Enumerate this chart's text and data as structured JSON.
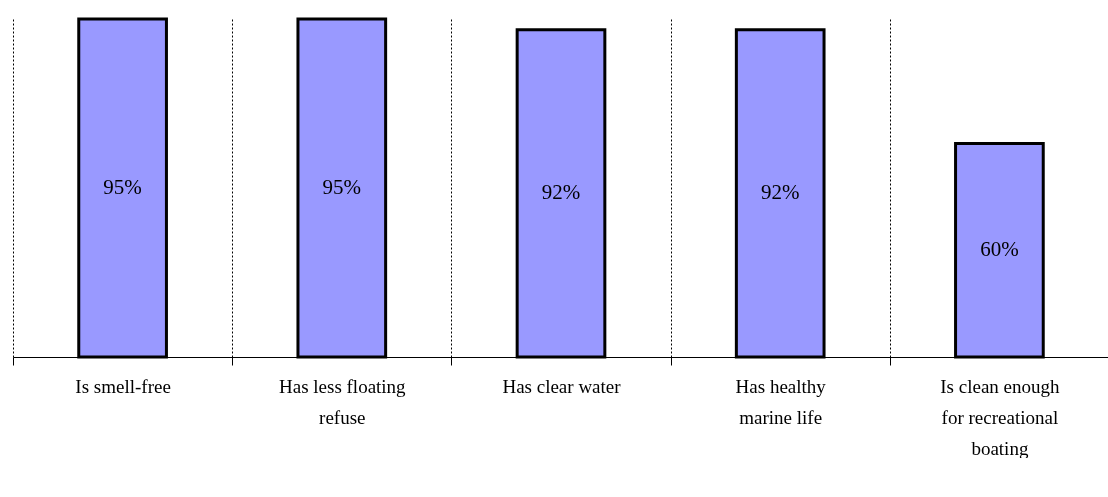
{
  "chart_data": {
    "type": "bar",
    "categories": [
      "Is smell-free",
      "Has less floating refuse",
      "Has clear water",
      "Has healthy marine life",
      "Is clean enough for recreational boating"
    ],
    "values": [
      95,
      95,
      92,
      92,
      60
    ],
    "value_labels": [
      "95%",
      "95%",
      "92%",
      "92%",
      "60%"
    ],
    "color": "#9999ff",
    "grid": "x"
  }
}
